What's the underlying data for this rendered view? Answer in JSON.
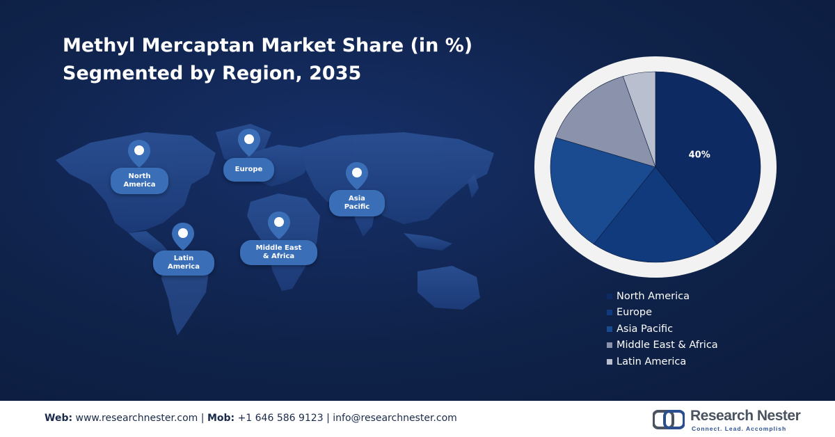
{
  "header": {
    "title_line1": "Methyl Mercaptan Market Share (in %)",
    "title_line2": "Segmented by Region, 2035"
  },
  "map": {
    "regions": [
      {
        "key": "north_america",
        "label": "North\nAmerica"
      },
      {
        "key": "europe",
        "label": "Europe"
      },
      {
        "key": "asia_pacific",
        "label": "Asia\nPacific"
      },
      {
        "key": "latin_america",
        "label": "Latin\nAmerica"
      },
      {
        "key": "mea",
        "label": "Middle East\n& Africa"
      }
    ],
    "pin_icon": "location-pin-icon"
  },
  "chart_data": {
    "type": "pie",
    "title": "Methyl Mercaptan Market Share (in %) Segmented by Region, 2035",
    "categories": [
      "North America",
      "Europe",
      "Asia Pacific",
      "Middle East & Africa",
      "Latin America"
    ],
    "values": [
      40,
      20,
      20,
      15,
      5
    ],
    "colors": [
      "#0e2a63",
      "#113a7d",
      "#1a4a90",
      "#8a93ab",
      "#b9bfce"
    ],
    "data_labels": [
      "40%",
      "",
      "",
      "",
      ""
    ],
    "legend_position": "bottom",
    "ring_color": "#f2f2f2"
  },
  "footer": {
    "web_label": "Web:",
    "web_value": "www.researchnester.com",
    "sep1": "|",
    "mob_label": "Mob:",
    "mob_value": "+1 646 586 9123",
    "sep2": "|",
    "email": "info@researchnester.com",
    "brand_name": "Research Nester",
    "brand_tagline": "Connect. Lead. Accomplish",
    "brand_icon": "research-nester-logo-icon"
  }
}
